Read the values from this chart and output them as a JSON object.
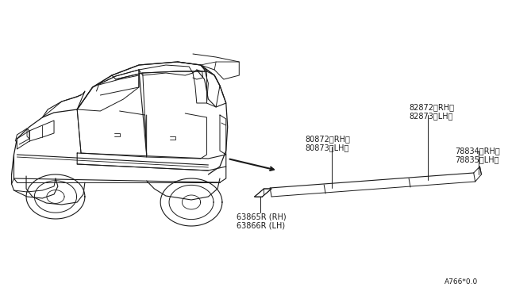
{
  "background_color": "#ffffff",
  "line_color": "#1a1a1a",
  "text_color": "#1a1a1a",
  "font_size": 7.0,
  "note_font_size": 6.5,
  "diagram_note": "A766*0.0",
  "labels": {
    "part1": "82872〈RH〉\n82873〈LH〉",
    "part2": "80872〈RH〉\n80873〈LH〉",
    "part3": "78834〈RH〉\n78835〈LH〉",
    "part4": "63865R (RH)\n63866R (LH)"
  }
}
